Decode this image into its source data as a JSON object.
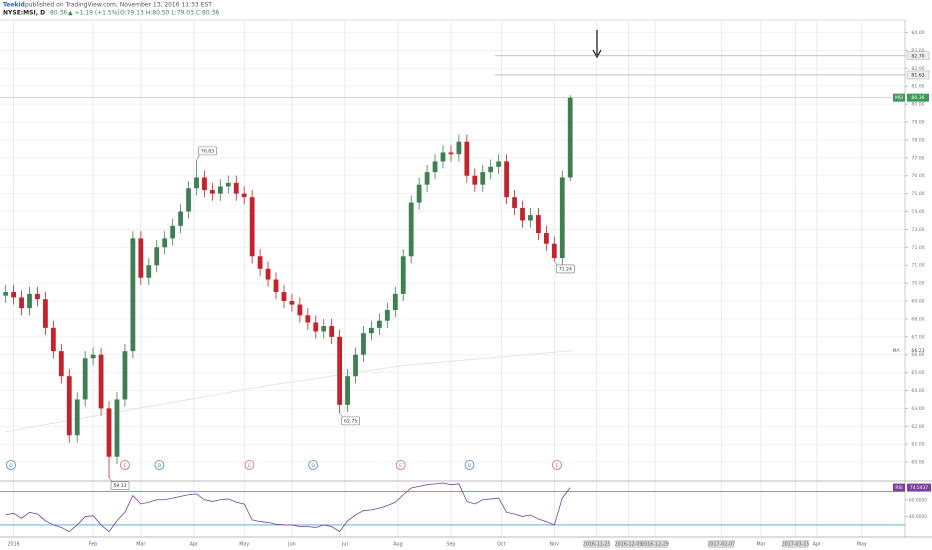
{
  "chart_data": {
    "type": "candlestick",
    "header": {
      "author": "Teekid",
      "published": " published on TradingView.com, November 13, 2016 11:33 EST",
      "symbol": "NYSE:MSI, D",
      "price": "80.36",
      "change": "▲ +1.19 (+1.5%)",
      "ohlc": "O:79.13 H:80.50 L:79.03 C:80.36"
    },
    "xlim": [
      -1,
      331
    ],
    "xticks": [
      {
        "value": 3,
        "label": "2016"
      },
      {
        "value": 33,
        "label": "Feb"
      },
      {
        "value": 51,
        "label": "Mar"
      },
      {
        "value": 71,
        "label": "Apr"
      },
      {
        "value": 90,
        "label": "May"
      },
      {
        "value": 108,
        "label": "Jun"
      },
      {
        "value": 128,
        "label": "Jul"
      },
      {
        "value": 148,
        "label": "Aug"
      },
      {
        "value": 168,
        "label": "Sep"
      },
      {
        "value": 187,
        "label": "Oct"
      },
      {
        "value": 207,
        "label": "Nov"
      },
      {
        "value": 223,
        "label": "2016-11-25"
      },
      {
        "value": 235,
        "label": "2016-12-09"
      },
      {
        "value": 245,
        "label": "2016-12-29"
      },
      {
        "value": 270,
        "label": "2017-02-07"
      },
      {
        "value": 285,
        "label": "Mar"
      },
      {
        "value": 298,
        "label": "2017-03-15"
      },
      {
        "value": 306,
        "label": "Apr"
      },
      {
        "value": 323,
        "label": "May"
      }
    ],
    "ylim": [
      59,
      84.7
    ],
    "yticks": [
      {
        "value": 60,
        "label": "60.00"
      },
      {
        "value": 61,
        "label": "61.00"
      },
      {
        "value": 62,
        "label": "62.00"
      },
      {
        "value": 63,
        "label": "63.00"
      },
      {
        "value": 64,
        "label": "64.00"
      },
      {
        "value": 65,
        "label": "65.00"
      },
      {
        "value": 66,
        "label": "66.00"
      },
      {
        "value": 67,
        "label": "67.00"
      },
      {
        "value": 68,
        "label": "68.00"
      },
      {
        "value": 69,
        "label": "69.00"
      },
      {
        "value": 70,
        "label": "70.00"
      },
      {
        "value": 71,
        "label": "71.00"
      },
      {
        "value": 72,
        "label": "72.00"
      },
      {
        "value": 73,
        "label": "73.00"
      },
      {
        "value": 74,
        "label": "74.00"
      },
      {
        "value": 75,
        "label": "75.00"
      },
      {
        "value": 76,
        "label": "76.00"
      },
      {
        "value": 77,
        "label": "77.00"
      },
      {
        "value": 78,
        "label": "78.00"
      },
      {
        "value": 79,
        "label": "79.00"
      },
      {
        "value": 80,
        "label": "80.00"
      },
      {
        "value": 81,
        "label": "81.00"
      },
      {
        "value": 82,
        "label": "82.00"
      },
      {
        "value": 83,
        "label": "83.00"
      },
      {
        "value": 84,
        "label": "84.00"
      }
    ],
    "grid": true,
    "candles": {
      "up_color": "#3f7f52",
      "down_color": "#c4232b",
      "x": [
        0,
        3,
        6,
        9,
        12,
        15,
        18,
        21,
        24,
        27,
        30,
        33,
        36,
        39,
        42,
        45,
        48,
        51,
        54,
        57,
        60,
        63,
        66,
        69,
        72,
        75,
        78,
        81,
        84,
        87,
        90,
        93,
        96,
        99,
        102,
        105,
        108,
        111,
        114,
        117,
        120,
        123,
        126,
        129,
        132,
        135,
        138,
        141,
        144,
        147,
        150,
        153,
        156,
        159,
        162,
        165,
        168,
        171,
        174,
        177,
        180,
        183,
        186,
        189,
        192,
        195,
        198,
        201,
        204,
        207,
        210,
        213
      ],
      "open": [
        69.3,
        69.5,
        69.2,
        68.6,
        69.4,
        69.1,
        67.5,
        66.2,
        64.8,
        61.5,
        63.5,
        65.8,
        66.0,
        63.0,
        60.3,
        63.5,
        66.2,
        72.5,
        70.3,
        71.0,
        72.0,
        72.5,
        73.2,
        74.0,
        75.3,
        75.9,
        75.2,
        75.0,
        75.4,
        75.6,
        75.0,
        74.8,
        71.5,
        70.8,
        70.2,
        69.5,
        69.0,
        68.8,
        68.2,
        67.8,
        67.3,
        67.6,
        67.0,
        63.2,
        64.8,
        66.0,
        67.2,
        67.5,
        67.9,
        68.5,
        69.4,
        71.5,
        74.5,
        75.5,
        76.2,
        76.8,
        77.3,
        77.2,
        77.9,
        76.0,
        75.5,
        76.2,
        76.5,
        76.8,
        74.8,
        74.2,
        73.5,
        73.8,
        72.8,
        72.2,
        71.4,
        75.9
      ],
      "high": [
        69.9,
        69.9,
        69.6,
        69.8,
        69.8,
        69.5,
        67.9,
        66.6,
        65.2,
        63.9,
        66.2,
        66.4,
        66.4,
        63.4,
        63.9,
        66.6,
        72.9,
        72.9,
        71.4,
        72.4,
        72.9,
        73.6,
        74.4,
        75.7,
        76.83,
        76.3,
        75.6,
        75.8,
        76.0,
        76.0,
        75.4,
        75.2,
        71.9,
        71.2,
        70.6,
        69.9,
        69.4,
        69.2,
        68.6,
        68.2,
        68.0,
        68.0,
        67.4,
        65.2,
        66.4,
        67.6,
        67.9,
        68.3,
        68.9,
        69.8,
        71.9,
        74.9,
        75.9,
        76.6,
        77.2,
        77.7,
        77.7,
        78.3,
        78.3,
        76.4,
        76.6,
        76.9,
        77.2,
        77.2,
        75.2,
        74.6,
        74.2,
        74.2,
        73.2,
        72.6,
        76.3,
        80.5
      ],
      "low": [
        68.9,
        68.8,
        68.2,
        68.2,
        68.7,
        67.1,
        65.8,
        64.4,
        61.1,
        61.1,
        63.1,
        65.4,
        62.6,
        59.13,
        59.9,
        63.1,
        65.8,
        69.9,
        69.9,
        70.6,
        71.6,
        72.1,
        72.8,
        73.6,
        74.9,
        74.8,
        74.6,
        74.6,
        75.0,
        74.6,
        74.4,
        71.1,
        70.4,
        69.8,
        69.1,
        68.6,
        68.4,
        67.8,
        67.4,
        66.9,
        66.9,
        66.6,
        62.75,
        62.8,
        64.4,
        65.6,
        66.8,
        67.1,
        67.5,
        68.1,
        69.0,
        71.1,
        74.1,
        75.1,
        75.8,
        76.4,
        76.8,
        76.8,
        75.6,
        75.1,
        75.1,
        75.8,
        76.1,
        74.4,
        73.8,
        73.1,
        73.1,
        72.4,
        71.8,
        71.24,
        71.0,
        75.7
      ],
      "close": [
        69.5,
        69.2,
        68.6,
        69.4,
        69.1,
        67.5,
        66.2,
        64.8,
        61.5,
        63.5,
        65.8,
        66.0,
        63.0,
        60.3,
        63.5,
        66.2,
        72.5,
        70.3,
        71.0,
        72.0,
        72.5,
        73.2,
        74.0,
        75.3,
        75.9,
        75.2,
        75.0,
        75.4,
        75.6,
        75.0,
        74.8,
        71.5,
        70.8,
        70.2,
        69.5,
        69.0,
        68.8,
        68.2,
        67.8,
        67.3,
        67.6,
        67.0,
        63.2,
        64.8,
        66.0,
        67.2,
        67.5,
        67.9,
        68.5,
        69.4,
        71.5,
        74.5,
        75.5,
        76.2,
        76.8,
        77.3,
        77.2,
        77.9,
        76.0,
        75.5,
        76.2,
        76.5,
        76.8,
        74.8,
        74.2,
        73.5,
        73.8,
        72.8,
        72.2,
        71.4,
        75.9,
        80.36
      ]
    },
    "last_price": {
      "symbol": "MSI",
      "color": "#3f9a5a"
    },
    "ma": {
      "name": "MA",
      "color": "#e4e4e4",
      "x": [
        0,
        50,
        100,
        150,
        214
      ],
      "values": [
        61.7,
        63.0,
        64.3,
        65.4,
        66.23
      ]
    },
    "levels": [
      {
        "value": 82.7,
        "label": "82.70"
      },
      81.63
    ],
    "annotations": [
      {
        "x": 72,
        "value": 76.83
      },
      {
        "x": 39,
        "value": 59.13
      },
      {
        "x": 126,
        "value": 62.75
      },
      {
        "x": 207,
        "value": 71.24
      }
    ],
    "events": [
      {
        "label": "D",
        "x": 2
      },
      {
        "label": "E",
        "x": 45
      },
      {
        "label": "D",
        "x": 58
      },
      {
        "label": "E",
        "x": 92
      },
      {
        "label": "D",
        "x": 116
      },
      {
        "label": "E",
        "x": 149
      },
      {
        "label": "D",
        "x": 175
      },
      {
        "label": "E",
        "x": 208
      }
    ],
    "rsi": {
      "name": "RSI",
      "color": "#7b3fa0",
      "ylim": [
        18,
        80
      ],
      "yticks": [
        {
          "value": 60,
          "label": "60.0000"
        },
        {
          "value": 40,
          "label": "40.0000"
        }
      ],
      "upper": 70,
      "lower": 30,
      "values": [
        42,
        44,
        38,
        45,
        43,
        35,
        30,
        27,
        22,
        30,
        40,
        41,
        30,
        22,
        35,
        45,
        65,
        55,
        57,
        60,
        60,
        62,
        64,
        66,
        67,
        60,
        58,
        60,
        61,
        57,
        55,
        36,
        34,
        33,
        31,
        30,
        30,
        28,
        28,
        27,
        30,
        28,
        22,
        35,
        42,
        47,
        48,
        50,
        53,
        57,
        66,
        74,
        76,
        78,
        79,
        80,
        78,
        79,
        58,
        55,
        60,
        61,
        62,
        45,
        43,
        40,
        42,
        37,
        34,
        30,
        62,
        74.5437
      ]
    }
  }
}
